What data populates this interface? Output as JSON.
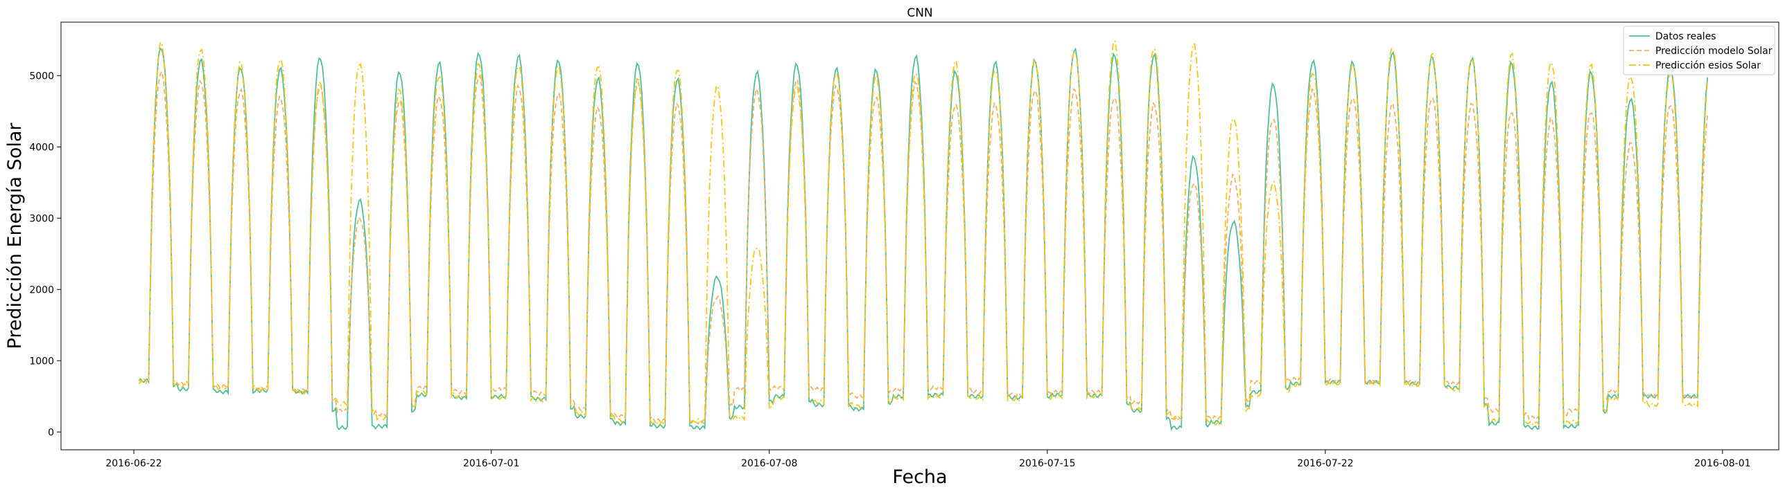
{
  "chart_data": {
    "type": "line",
    "title": "CNN",
    "xlabel": "Fecha",
    "ylabel": "Predicción Energía Solar",
    "xlim": [
      "2016-06-20T04:00",
      "2016-08-02T10:00"
    ],
    "ylim": [
      -250,
      5750
    ],
    "x_ticks": [
      {
        "date": "2016-06-22",
        "label": "2016-06-22"
      },
      {
        "date": "2016-07-01",
        "label": "2016-07-01"
      },
      {
        "date": "2016-07-08",
        "label": "2016-07-08"
      },
      {
        "date": "2016-07-15",
        "label": "2016-07-15"
      },
      {
        "date": "2016-07-22",
        "label": "2016-07-22"
      },
      {
        "date": "2016-08-01",
        "label": "2016-08-01"
      }
    ],
    "y_ticks": [
      0,
      1000,
      2000,
      3000,
      4000,
      5000
    ],
    "grid": false,
    "legend_position": "top-right",
    "start_date": "2016-06-22",
    "series": [
      {
        "name": "Datos reales",
        "color": "#4fbf9a",
        "dash": "solid",
        "daily_peak": [
          5400,
          5220,
          5120,
          5100,
          5260,
          3250,
          5060,
          5180,
          5320,
          5280,
          5220,
          4960,
          5180,
          4950,
          2180,
          5050,
          5170,
          5100,
          5090,
          5270,
          5060,
          5190,
          5220,
          5370,
          5300,
          5300,
          3860,
          2950,
          4880,
          5210,
          5190,
          5330,
          5270,
          5250,
          5180,
          4920,
          5050,
          4680,
          5120
        ],
        "daily_night": [
          720,
          600,
          560,
          580,
          560,
          60,
          80,
          520,
          480,
          500,
          460,
          220,
          120,
          80,
          60,
          350,
          500,
          380,
          320,
          500,
          520,
          500,
          480,
          520,
          510,
          300,
          60,
          140,
          560,
          680,
          700,
          700,
          680,
          620,
          120,
          60,
          80,
          500,
          500
        ]
      },
      {
        "name": "Predicción modelo Solar",
        "color": "#f2b060",
        "dash": "dashed",
        "daily_peak": [
          5050,
          4920,
          4800,
          4700,
          4850,
          3000,
          4650,
          4700,
          5000,
          4850,
          4750,
          4550,
          4900,
          4600,
          1900,
          4800,
          4950,
          4850,
          4700,
          4900,
          4600,
          4600,
          4800,
          4800,
          4700,
          4600,
          3500,
          3600,
          4400,
          4800,
          4700,
          4600,
          4700,
          4600,
          4500,
          4400,
          4500,
          4050,
          4600
        ],
        "daily_night": [
          720,
          680,
          640,
          620,
          580,
          300,
          250,
          620,
          560,
          600,
          540,
          320,
          220,
          160,
          140,
          600,
          620,
          600,
          500,
          600,
          620,
          560,
          520,
          560,
          560,
          420,
          200,
          200,
          700,
          740,
          720,
          700,
          700,
          680,
          300,
          200,
          300,
          580,
          500
        ]
      },
      {
        "name": "Predicción esios Solar",
        "color": "#f5c518",
        "dash": "dashdot",
        "daily_peak": [
          5460,
          5380,
          5180,
          5240,
          4900,
          5180,
          4800,
          5000,
          5160,
          5150,
          5130,
          5150,
          4950,
          5100,
          4850,
          2600,
          4850,
          5050,
          5000,
          5050,
          5200,
          5100,
          5200,
          5350,
          5480,
          5400,
          5440,
          4420,
          3500,
          5050,
          5150,
          5400,
          5300,
          5250,
          5300,
          5200,
          5150,
          5000,
          5050
        ],
        "daily_night": [
          700,
          650,
          620,
          600,
          560,
          400,
          200,
          550,
          500,
          480,
          450,
          260,
          160,
          120,
          160,
          200,
          480,
          420,
          360,
          480,
          500,
          480,
          460,
          500,
          500,
          320,
          200,
          120,
          520,
          660,
          680,
          680,
          660,
          600,
          160,
          120,
          140,
          460,
          380
        ]
      }
    ]
  }
}
